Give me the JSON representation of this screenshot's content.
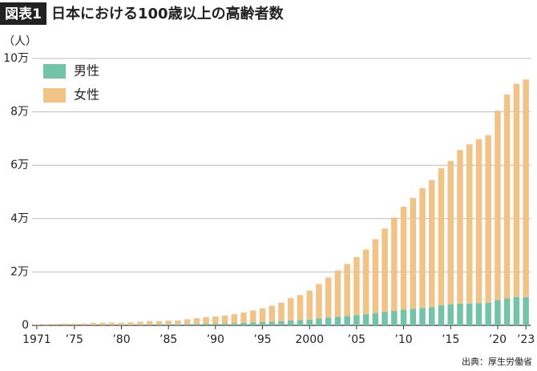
{
  "chart_data": {
    "type": "stacked-bar",
    "figure_label": "図表1",
    "title": "日本における100歳以上の高齢者数",
    "y_label": "（人）",
    "source": "出典：厚生労働省",
    "categories": [
      "1971",
      null,
      null,
      null,
      "’75",
      null,
      null,
      null,
      null,
      "’80",
      null,
      null,
      null,
      null,
      "’85",
      null,
      null,
      null,
      null,
      "’90",
      null,
      null,
      null,
      null,
      "’95",
      null,
      null,
      null,
      null,
      "2000",
      null,
      null,
      null,
      null,
      "’05",
      null,
      null,
      null,
      null,
      "’10",
      null,
      null,
      null,
      null,
      "’15",
      null,
      null,
      null,
      null,
      "’20",
      null,
      null,
      "’23"
    ],
    "series": [
      {
        "name": "男性",
        "color": "#72c3a7",
        "values": [
          62,
          78,
          80,
          97,
          102,
          115,
          129,
          137,
          151,
          174,
          194,
          223,
          262,
          294,
          359,
          380,
          462,
          540,
          608,
          680,
          715,
          810,
          935,
          1095,
          1255,
          1314,
          1570,
          1812,
          1973,
          2158,
          2541,
          2875,
          3159,
          3523,
          3779,
          4150,
          4613,
          5063,
          5447,
          5869,
          6162,
          6534,
          6791,
          7586,
          7840,
          8167,
          8197,
          8331,
          8463,
          9475,
          10060,
          10616,
          10550
        ]
      },
      {
        "name": "女性",
        "color": "#f1c387",
        "values": [
          277,
          327,
          415,
          530,
          446,
          551,
          753,
          813,
          886,
          794,
          878,
          1131,
          1301,
          1273,
          1381,
          1471,
          1809,
          2128,
          2470,
          2618,
          2910,
          3342,
          3867,
          4498,
          5123,
          6059,
          6921,
          8346,
          9373,
          10878,
          12934,
          15059,
          17402,
          19515,
          21775,
          24245,
          27682,
          31213,
          34952,
          38580,
          41594,
          44842,
          47606,
          51234,
          53728,
          57525,
          59627,
          61454,
          62811,
          70975,
          76450,
          79910,
          81589
        ]
      }
    ],
    "ylim": [
      0,
      100000
    ],
    "yticks": [
      0,
      {
        "value": 20000,
        "label": "2万"
      },
      {
        "value": 40000,
        "label": "4万"
      },
      {
        "value": 60000,
        "label": "6万"
      },
      {
        "value": 80000,
        "label": "8万"
      },
      {
        "value": 100000,
        "label": "10万"
      }
    ],
    "grid": true,
    "legend": "top-left"
  }
}
